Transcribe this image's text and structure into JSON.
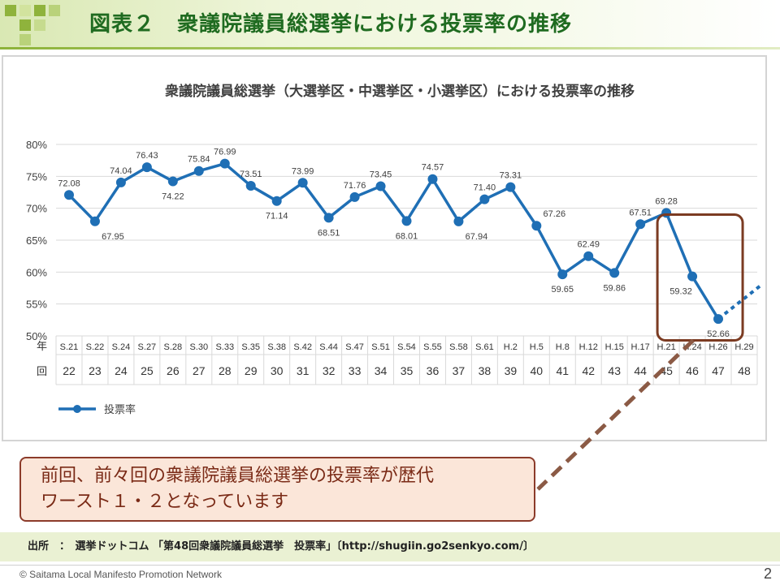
{
  "slide": {
    "title": "図表２　衆議院議員総選挙における投票率の推移",
    "callout_lines": [
      "前回、前々回の衆議院議員総選挙の投票率が歴代",
      "ワースト１・２となっています"
    ],
    "source": "出所　：　選挙ドットコム 「第48回衆議院議員総選挙　投票率」〔http://shugiin.go2senkyo.com/〕",
    "copyright": "© Saitama Local Manifesto Promotion Network",
    "page_number": "2"
  },
  "colors": {
    "line": "#1f6fb5",
    "highlight_box": "#7b3b22",
    "connector": "#8b5a45",
    "title": "#1f6b20"
  },
  "chart_data": {
    "type": "line",
    "title": "衆議院議員総選挙（大選挙区・中選挙区・小選挙区）における投票率の推移",
    "row_label_year": "年",
    "row_label_round": "回",
    "years": [
      "S.21",
      "S.22",
      "S.24",
      "S.27",
      "S.28",
      "S.30",
      "S.33",
      "S.35",
      "S.38",
      "S.42",
      "S.44",
      "S.47",
      "S.51",
      "S.54",
      "S.55",
      "S.58",
      "S.61",
      "H.2",
      "H.5",
      "H.8",
      "H.12",
      "H.15",
      "H.17",
      "H.21",
      "H.24",
      "H.26",
      "H.29"
    ],
    "rounds": [
      "22",
      "23",
      "24",
      "25",
      "26",
      "27",
      "28",
      "29",
      "30",
      "31",
      "32",
      "33",
      "34",
      "35",
      "36",
      "37",
      "38",
      "39",
      "40",
      "41",
      "42",
      "43",
      "44",
      "45",
      "46",
      "47",
      "48"
    ],
    "values": [
      72.08,
      67.95,
      74.04,
      76.43,
      74.22,
      75.84,
      76.99,
      73.51,
      71.14,
      73.99,
      68.51,
      71.76,
      73.45,
      68.01,
      74.57,
      67.94,
      71.4,
      73.31,
      67.26,
      59.65,
      62.49,
      59.86,
      67.51,
      69.28,
      59.32,
      52.66,
      null
    ],
    "value_labels": [
      "72.08",
      "67.95",
      "74.04",
      "76.43",
      "74.22",
      "75.84",
      "76.99",
      "73.51",
      "71.14",
      "73.99",
      "68.51",
      "71.76",
      "73.45",
      "68.01",
      "74.57",
      "67.94",
      "71.40",
      "73.31",
      "67.26",
      "59.65",
      "62.49",
      "59.86",
      "67.51",
      "69.28",
      "59.32",
      "52.66",
      ""
    ],
    "projection": {
      "from_index": 25,
      "to_index_extended": 26.6,
      "to_value": 57.8
    },
    "y_ticks": [
      "80%",
      "75%",
      "70%",
      "65%",
      "60%",
      "55%",
      "50%"
    ],
    "y_tick_values": [
      80,
      75,
      70,
      65,
      60,
      55,
      50
    ],
    "ylim": [
      50,
      80
    ],
    "grid": true,
    "legend": [
      {
        "name": "投票率"
      }
    ],
    "highlight_indices": [
      24,
      25
    ]
  }
}
